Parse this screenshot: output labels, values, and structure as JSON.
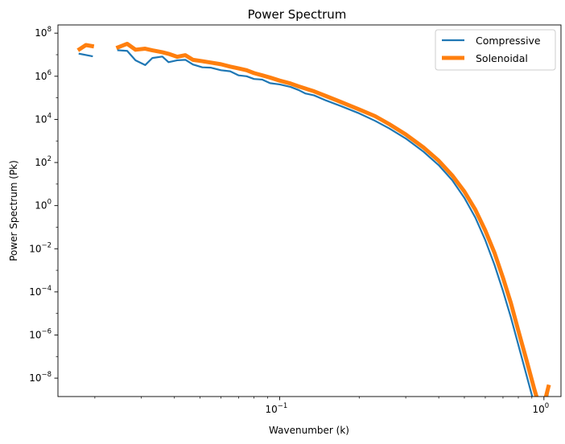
{
  "chart_data": {
    "type": "line",
    "title": "Power Spectrum",
    "xlabel": "Wavenumber (k)",
    "ylabel": "Power Spectrum (Pk)",
    "xscale": "log",
    "yscale": "log",
    "xlim": [
      0.0145,
      1.16
    ],
    "ylim": [
      1.4e-09,
      240000000.0
    ],
    "grid": false,
    "legend_position": "top-right",
    "x_ticks": [
      {
        "value": 0.1,
        "base": "10",
        "exp": "−1"
      },
      {
        "value": 1.0,
        "base": "10",
        "exp": "0"
      }
    ],
    "y_ticks": [
      {
        "value": 100000000.0,
        "base": "10",
        "exp": "8"
      },
      {
        "value": 1000000.0,
        "base": "10",
        "exp": "6"
      },
      {
        "value": 10000.0,
        "base": "10",
        "exp": "4"
      },
      {
        "value": 100.0,
        "base": "10",
        "exp": "2"
      },
      {
        "value": 1.0,
        "base": "10",
        "exp": "0"
      },
      {
        "value": 0.01,
        "base": "10",
        "exp": "−2"
      },
      {
        "value": 0.0001,
        "base": "10",
        "exp": "−4"
      },
      {
        "value": 1e-06,
        "base": "10",
        "exp": "−6"
      },
      {
        "value": 1e-08,
        "base": "10",
        "exp": "−8"
      }
    ],
    "series": [
      {
        "name": "Compressive",
        "color": "#1f77b4",
        "segments": [
          [
            [
              0.0175,
              11000000.0
            ],
            [
              0.0195,
              8500000.0
            ]
          ],
          [
            [
              0.0245,
              16000000.0
            ],
            [
              0.0265,
              15000000.0
            ],
            [
              0.0285,
              5500000.0
            ],
            [
              0.031,
              3300000.0
            ],
            [
              0.033,
              7000000.0
            ],
            [
              0.036,
              8200000.0
            ],
            [
              0.038,
              4500000.0
            ],
            [
              0.041,
              5500000.0
            ],
            [
              0.044,
              5800000.0
            ],
            [
              0.047,
              3500000.0
            ],
            [
              0.051,
              2600000.0
            ],
            [
              0.055,
              2500000.0
            ],
            [
              0.06,
              1900000.0
            ],
            [
              0.065,
              1700000.0
            ],
            [
              0.07,
              1100000.0
            ],
            [
              0.075,
              1000000.0
            ],
            [
              0.08,
              750000.0
            ],
            [
              0.086,
              700000.0
            ],
            [
              0.092,
              480000.0
            ],
            [
              0.1,
              420000.0
            ],
            [
              0.11,
              320000.0
            ],
            [
              0.118,
              230000.0
            ],
            [
              0.125,
              160000.0
            ],
            [
              0.135,
              130000.0
            ],
            [
              0.15,
              75000.0
            ],
            [
              0.17,
              42000.0
            ],
            [
              0.2,
              19000.0
            ],
            [
              0.23,
              8500.0
            ],
            [
              0.26,
              3800.0
            ],
            [
              0.3,
              1300.0
            ],
            [
              0.35,
              320.0
            ],
            [
              0.4,
              75
            ],
            [
              0.45,
              15
            ],
            [
              0.5,
              2.3
            ],
            [
              0.55,
              0.28
            ],
            [
              0.6,
              0.025
            ],
            [
              0.65,
              0.0018
            ],
            [
              0.7,
              0.00011
            ],
            [
              0.75,
              6.5e-06
            ],
            [
              0.8,
              3.5e-07
            ],
            [
              0.86,
              1.3e-08
            ],
            [
              0.92,
              6e-10
            ],
            [
              0.98,
              3.5e-11
            ],
            [
              1.04,
              2.7e-09
            ]
          ]
        ]
      },
      {
        "name": "Solenoidal",
        "color": "#ff7f0e",
        "segments": [
          [
            [
              0.0175,
              18000000.0
            ],
            [
              0.0185,
              28000000.0
            ],
            [
              0.0195,
              25000000.0
            ]
          ],
          [
            [
              0.0245,
              22000000.0
            ],
            [
              0.0265,
              32000000.0
            ],
            [
              0.0285,
              17000000.0
            ],
            [
              0.031,
              19000000.0
            ],
            [
              0.033,
              16000000.0
            ],
            [
              0.036,
              13000000.0
            ],
            [
              0.038,
              11000000.0
            ],
            [
              0.041,
              8000000.0
            ],
            [
              0.044,
              9500000.0
            ],
            [
              0.047,
              5800000.0
            ],
            [
              0.051,
              5000000.0
            ],
            [
              0.055,
              4300000.0
            ],
            [
              0.06,
              3600000.0
            ],
            [
              0.065,
              2800000.0
            ],
            [
              0.07,
              2300000.0
            ],
            [
              0.075,
              1900000.0
            ],
            [
              0.08,
              1400000.0
            ],
            [
              0.086,
              1100000.0
            ],
            [
              0.092,
              870000.0
            ],
            [
              0.1,
              630000.0
            ],
            [
              0.11,
              460000.0
            ],
            [
              0.118,
              340000.0
            ],
            [
              0.125,
              270000.0
            ],
            [
              0.135,
              200000.0
            ],
            [
              0.15,
              120000.0
            ],
            [
              0.17,
              65000.0
            ],
            [
              0.2,
              29000.0
            ],
            [
              0.23,
              14000.0
            ],
            [
              0.26,
              6000.0
            ],
            [
              0.3,
              2000.0
            ],
            [
              0.35,
              500.0
            ],
            [
              0.4,
              120.0
            ],
            [
              0.45,
              25
            ],
            [
              0.5,
              4.5
            ],
            [
              0.55,
              0.65
            ],
            [
              0.6,
              0.07
            ],
            [
              0.65,
              0.0065
            ],
            [
              0.7,
              0.00045
            ],
            [
              0.75,
              3e-05
            ],
            [
              0.8,
              1.6e-06
            ],
            [
              0.86,
              6.5e-08
            ],
            [
              0.92,
              3e-09
            ],
            [
              0.98,
              2.2e-10
            ],
            [
              1.04,
              4e-09
            ]
          ]
        ]
      }
    ]
  }
}
